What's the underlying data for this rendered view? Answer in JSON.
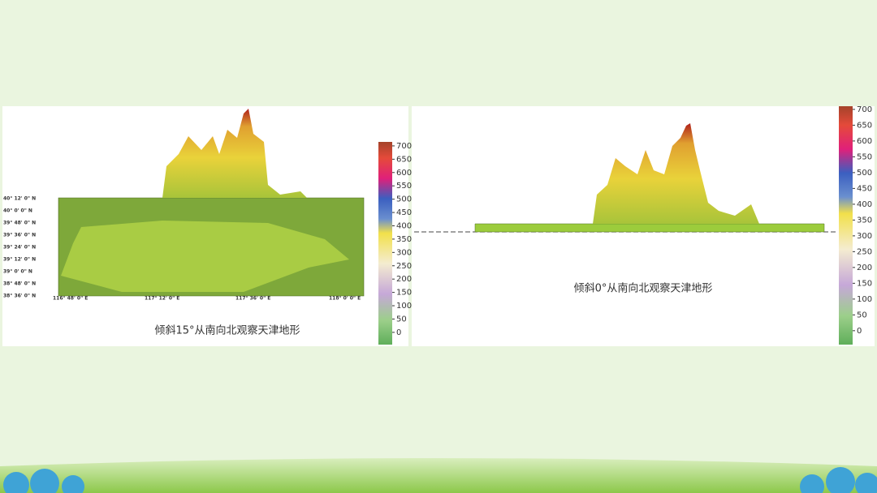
{
  "panels": [
    {
      "caption": "倾斜15°从南向北观察天津地形",
      "lat_labels": [
        "40° 12' 0\" N",
        "40° 0' 0\" N",
        "39° 48' 0\" N",
        "39° 36' 0\" N",
        "39° 24' 0\" N",
        "39° 12' 0\" N",
        "39° 0' 0\" N",
        "38° 48' 0\" N",
        "38° 36' 0\" N"
      ],
      "lon_labels": [
        "116° 48' 0\" E",
        "117° 12' 0\" E",
        "117° 36' 0\" E",
        "118° 0' 0\" E"
      ],
      "colorbar": {
        "lim": [
          -46,
          715
        ],
        "ticks": [
          0,
          50,
          100,
          150,
          200,
          250,
          300,
          350,
          400,
          450,
          500,
          550,
          600,
          650,
          700
        ]
      }
    },
    {
      "caption": "倾斜0°从南向北观察天津地形",
      "colorbar": {
        "lim": [
          -44,
          710
        ],
        "ticks": [
          0,
          50,
          100,
          150,
          200,
          250,
          300,
          350,
          400,
          450,
          500,
          550,
          600,
          650,
          700
        ]
      }
    }
  ]
}
